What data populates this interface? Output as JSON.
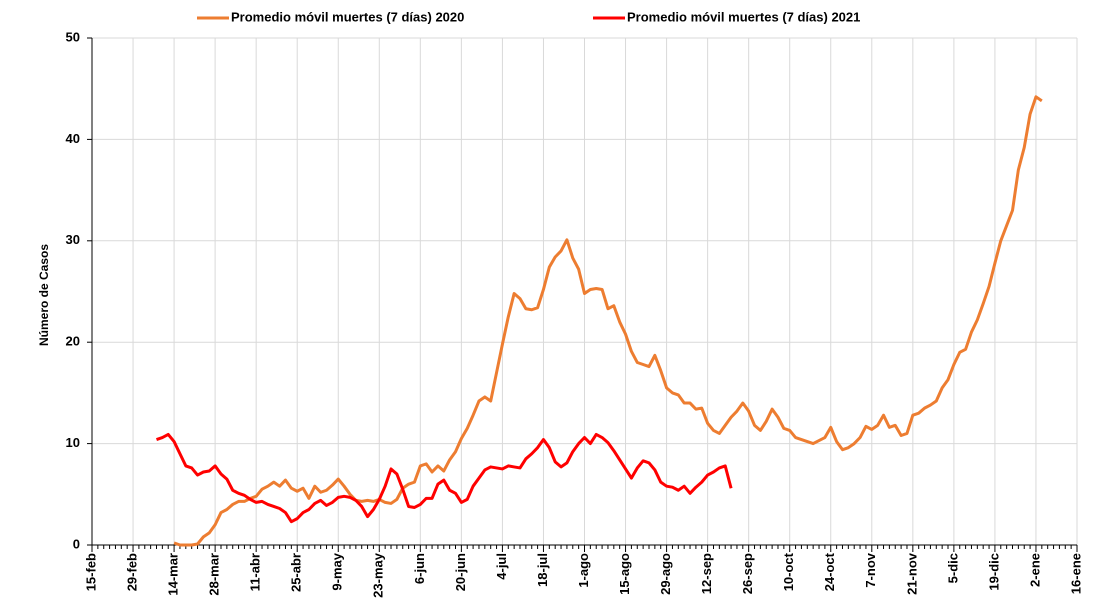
{
  "chart_data": {
    "type": "line",
    "y_label": "Número de Casos",
    "categories": [
      "15-feb",
      null,
      null,
      null,
      null,
      null,
      null,
      "29-feb",
      null,
      null,
      null,
      null,
      null,
      null,
      "14-mar",
      null,
      null,
      null,
      null,
      null,
      null,
      "28-mar",
      null,
      null,
      null,
      null,
      null,
      null,
      "11-abr",
      null,
      null,
      null,
      null,
      null,
      null,
      "25-abr",
      null,
      null,
      null,
      null,
      null,
      null,
      "9-may",
      null,
      null,
      null,
      null,
      null,
      null,
      "23-may",
      null,
      null,
      null,
      null,
      null,
      null,
      "6-jun",
      null,
      null,
      null,
      null,
      null,
      null,
      "20-jun",
      null,
      null,
      null,
      null,
      null,
      null,
      "4-jul",
      null,
      null,
      null,
      null,
      null,
      null,
      "18-jul",
      null,
      null,
      null,
      null,
      null,
      null,
      "1-ago",
      null,
      null,
      null,
      null,
      null,
      null,
      "15-ago",
      null,
      null,
      null,
      null,
      null,
      null,
      "29-ago",
      null,
      null,
      null,
      null,
      null,
      null,
      "12-sep",
      null,
      null,
      null,
      null,
      null,
      null,
      "26-sep",
      null,
      null,
      null,
      null,
      null,
      null,
      "10-oct",
      null,
      null,
      null,
      null,
      null,
      null,
      "24-oct",
      null,
      null,
      null,
      null,
      null,
      null,
      "7-nov",
      null,
      null,
      null,
      null,
      null,
      null,
      "21-nov",
      null,
      null,
      null,
      null,
      null,
      null,
      "5-dic",
      null,
      null,
      null,
      null,
      null,
      null,
      "19-dic",
      null,
      null,
      null,
      null,
      null,
      null,
      "2-ene",
      null,
      null,
      null,
      null,
      null,
      null,
      "16-ene"
    ],
    "series": [
      {
        "name": "Promedio móvil muertes (7 días) 2020",
        "color": "#ed7d31",
        "values": [
          null,
          null,
          null,
          null,
          null,
          null,
          null,
          null,
          null,
          null,
          null,
          null,
          null,
          null,
          0.2,
          0,
          0,
          0,
          0.1,
          0.8,
          1.2,
          2,
          3.2,
          3.5,
          4,
          4.3,
          4.3,
          4.6,
          4.8,
          5.5,
          5.8,
          6.2,
          5.8,
          6.4,
          5.6,
          5.3,
          5.6,
          4.6,
          5.8,
          5.2,
          5.4,
          5.9,
          6.5,
          5.8,
          5,
          4.4,
          4.3,
          4.4,
          4.3,
          4.5,
          4.2,
          4.1,
          4.5,
          5.6,
          6,
          6.2,
          7.8,
          8,
          7.2,
          7.8,
          7.3,
          8.4,
          9.2,
          10.5,
          11.5,
          12.8,
          14.2,
          14.6,
          14.2,
          17,
          19.8,
          22.5,
          24.8,
          24.3,
          23.3,
          23.2,
          23.4,
          25.2,
          27.4,
          28.4,
          29,
          30.1,
          28.3,
          27.2,
          24.8,
          25.2,
          25.3,
          25.2,
          23.3,
          23.6,
          22,
          20.8,
          19.1,
          18,
          17.8,
          17.6,
          18.7,
          17.2,
          15.5,
          15,
          14.8,
          14,
          14,
          13.4,
          13.5,
          12,
          11.3,
          11,
          11.8,
          12.6,
          13.2,
          14,
          13.2,
          11.8,
          11.3,
          12.2,
          13.4,
          12.6,
          11.5,
          11.3,
          10.6,
          10.4,
          10.2,
          10,
          10.3,
          10.6,
          11.6,
          10.2,
          9.4,
          9.6,
          10,
          10.6,
          11.7,
          11.4,
          11.8,
          12.8,
          11.6,
          11.8,
          10.8,
          11,
          12.8,
          13,
          13.5,
          13.8,
          14.2,
          15.5,
          16.3,
          17.8,
          19,
          19.3,
          21,
          22.2,
          23.8,
          25.5,
          27.8,
          30,
          31.5,
          33,
          37,
          39.2,
          42.5,
          44.2,
          43.8,
          null,
          null,
          null,
          null,
          null,
          null
        ]
      },
      {
        "name": "Promedio móvil muertes (7 días) 2021",
        "color": "#ff0000",
        "values": [
          null,
          null,
          null,
          null,
          null,
          null,
          null,
          null,
          null,
          null,
          null,
          10.4,
          10.6,
          10.9,
          10.2,
          9,
          7.8,
          7.6,
          6.9,
          7.2,
          7.3,
          7.8,
          7,
          6.5,
          5.4,
          5.1,
          4.9,
          4.5,
          4.2,
          4.3,
          4,
          3.8,
          3.6,
          3.2,
          2.3,
          2.6,
          3.2,
          3.5,
          4.1,
          4.4,
          3.9,
          4.2,
          4.7,
          4.8,
          4.7,
          4.4,
          3.8,
          2.8,
          3.5,
          4.5,
          5.8,
          7.5,
          7,
          5.5,
          3.8,
          3.7,
          4,
          4.6,
          4.6,
          6,
          6.4,
          5.4,
          5.1,
          4.2,
          4.5,
          5.8,
          6.6,
          7.4,
          7.7,
          7.6,
          7.5,
          7.8,
          7.7,
          7.6,
          8.5,
          9,
          9.6,
          10.4,
          9.6,
          8.2,
          7.7,
          8.1,
          9.2,
          10,
          10.6,
          10,
          10.9,
          10.6,
          10.1,
          9.3,
          8.4,
          7.5,
          6.6,
          7.6,
          8.3,
          8.1,
          7.4,
          6.2,
          5.8,
          5.7,
          5.4,
          5.8,
          5.1,
          5.7,
          6.2,
          6.9,
          7.2,
          7.6,
          7.8,
          5.6,
          null,
          null,
          null,
          null,
          null,
          null,
          null,
          null,
          null,
          null,
          null,
          null,
          null,
          null,
          null,
          null,
          null,
          null,
          null,
          null,
          null,
          null,
          null,
          null,
          null,
          null,
          null,
          null,
          null,
          null,
          null,
          null,
          null,
          null,
          null,
          null,
          null,
          null,
          null,
          null,
          null,
          null,
          null,
          null,
          null,
          null,
          null,
          null,
          null,
          null,
          null,
          null,
          null,
          null,
          null,
          null,
          null,
          null,
          null
        ]
      }
    ],
    "ylim": [
      0,
      50
    ],
    "yticks": [
      0,
      10,
      20,
      30,
      40,
      50
    ],
    "grid": true
  }
}
